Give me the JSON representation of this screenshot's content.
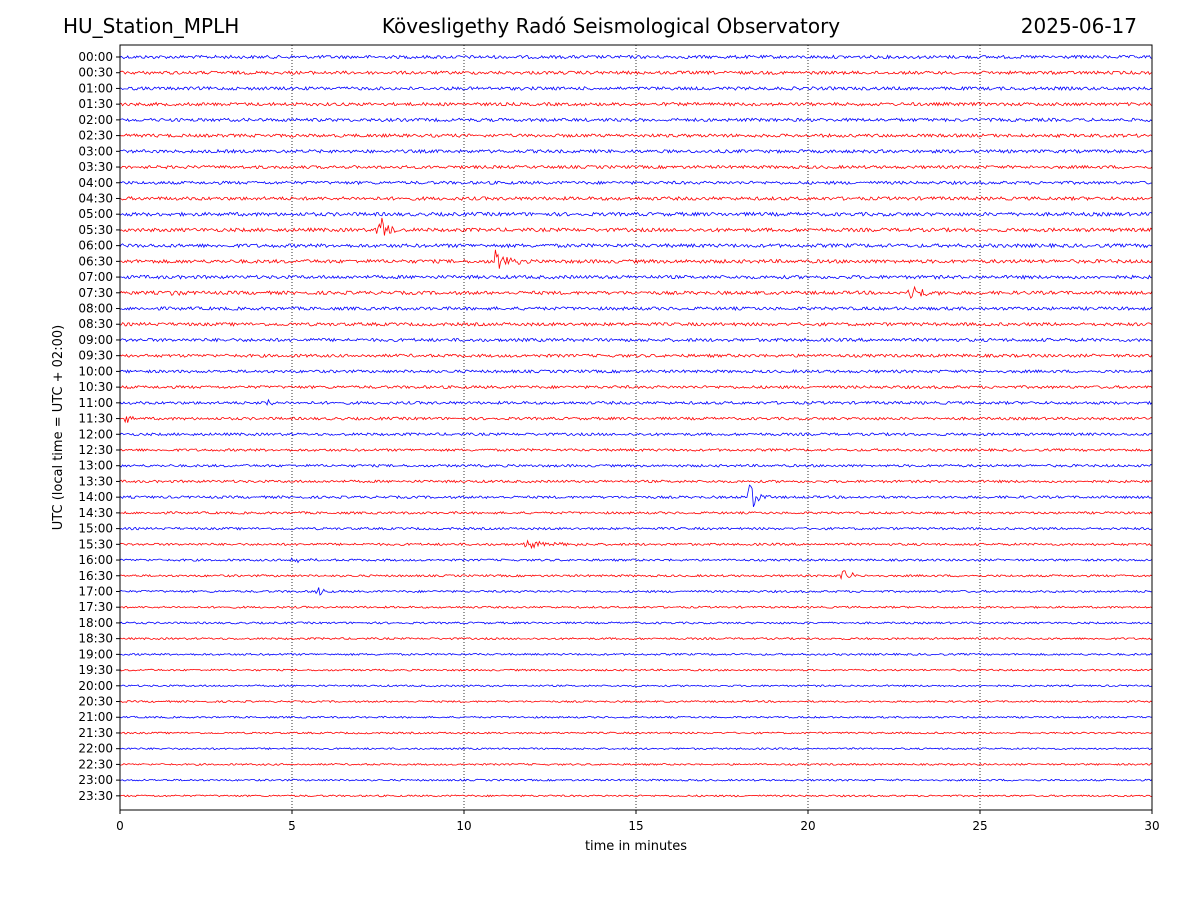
{
  "header": {
    "station": "HU_Station_MPLH",
    "observatory": "Kövesligethy Radó Seismological Observatory",
    "date": "2025-06-17"
  },
  "colors": {
    "even_row": "#0000ff",
    "odd_row": "#ff0000",
    "axis": "#000000",
    "grid": "#000000"
  },
  "chart_data": {
    "type": "line",
    "subtype": "helicorder",
    "xlabel": "time in minutes",
    "ylabel": "UTC (local time = UTC + 02:00)",
    "xlim": [
      0,
      30
    ],
    "xticks": [
      0,
      5,
      10,
      15,
      20,
      25,
      30
    ],
    "grid": "vertical dotted at x ticks",
    "row_labels": [
      "00:00",
      "00:30",
      "01:00",
      "01:30",
      "02:00",
      "02:30",
      "03:00",
      "03:30",
      "04:00",
      "04:30",
      "05:00",
      "05:30",
      "06:00",
      "06:30",
      "07:00",
      "07:30",
      "08:00",
      "08:30",
      "09:00",
      "09:30",
      "10:00",
      "10:30",
      "11:00",
      "11:30",
      "12:00",
      "12:30",
      "13:00",
      "13:30",
      "14:00",
      "14:30",
      "15:00",
      "15:30",
      "16:00",
      "16:30",
      "17:00",
      "17:30",
      "18:00",
      "18:30",
      "19:00",
      "19:30",
      "20:00",
      "20:30",
      "21:00",
      "21:30",
      "22:00",
      "22:30",
      "23:00",
      "23:30"
    ],
    "row_colors": "alternating blue (even) / red (odd)",
    "noise_level_by_row": [
      0.9,
      0.9,
      0.9,
      0.9,
      0.9,
      0.9,
      0.9,
      0.85,
      0.85,
      0.95,
      1.0,
      1.0,
      1.0,
      1.0,
      0.95,
      0.95,
      0.9,
      0.9,
      0.9,
      0.85,
      0.8,
      0.8,
      0.8,
      0.75,
      0.75,
      0.7,
      0.7,
      0.7,
      0.7,
      0.65,
      0.65,
      0.65,
      0.6,
      0.6,
      0.6,
      0.55,
      0.55,
      0.55,
      0.55,
      0.5,
      0.5,
      0.5,
      0.5,
      0.5,
      0.5,
      0.5,
      0.5,
      0.5
    ],
    "events": [
      {
        "row": "05:30",
        "minute": 7.5,
        "amplitude": 3.5,
        "duration": 0.5
      },
      {
        "row": "06:30",
        "minute": 10.9,
        "amplitude": 1.8,
        "duration": 0.8
      },
      {
        "row": "07:30",
        "minute": 1.5,
        "amplitude": 0.9,
        "duration": 0.4
      },
      {
        "row": "07:30",
        "minute": 23.0,
        "amplitude": 1.6,
        "duration": 0.8
      },
      {
        "row": "11:00",
        "minute": 4.1,
        "amplitude": 1.8,
        "duration": 0.4
      },
      {
        "row": "11:30",
        "minute": 0.1,
        "amplitude": 1.3,
        "duration": 0.4
      },
      {
        "row": "14:00",
        "minute": 18.3,
        "amplitude": 3.0,
        "duration": 0.5
      },
      {
        "row": "15:30",
        "minute": 11.8,
        "amplitude": 0.7,
        "duration": 1.6
      },
      {
        "row": "16:00",
        "minute": 5.0,
        "amplitude": 0.7,
        "duration": 0.6
      },
      {
        "row": "16:30",
        "minute": 21.0,
        "amplitude": 1.2,
        "duration": 0.5
      },
      {
        "row": "17:00",
        "minute": 5.7,
        "amplitude": 1.1,
        "duration": 0.3
      }
    ]
  }
}
